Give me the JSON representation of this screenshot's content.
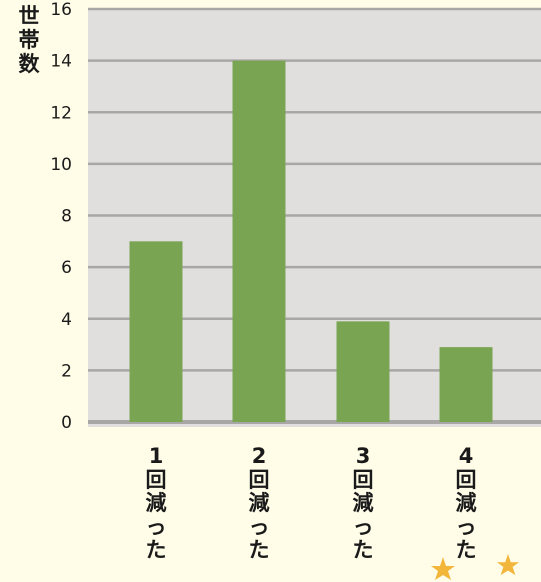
{
  "chart_data": {
    "type": "bar",
    "categories": [
      "1回減った",
      "2回減った",
      "3回減った",
      "4回減った"
    ],
    "values": [
      7,
      14,
      3.9,
      2.9
    ],
    "ylabel": "世帯数",
    "xlabel": "",
    "ylim": [
      0,
      16
    ],
    "yticks": [
      0,
      2,
      4,
      6,
      8,
      10,
      12,
      14,
      16
    ],
    "grid": true,
    "bar_color": "#79a552",
    "plot_background": "#e0dfdd",
    "gridline_color": "#a9a7a5",
    "page_background": "#fffde8"
  },
  "decoration": {
    "star_color": "#f2b63a",
    "icon": "star-icon"
  }
}
